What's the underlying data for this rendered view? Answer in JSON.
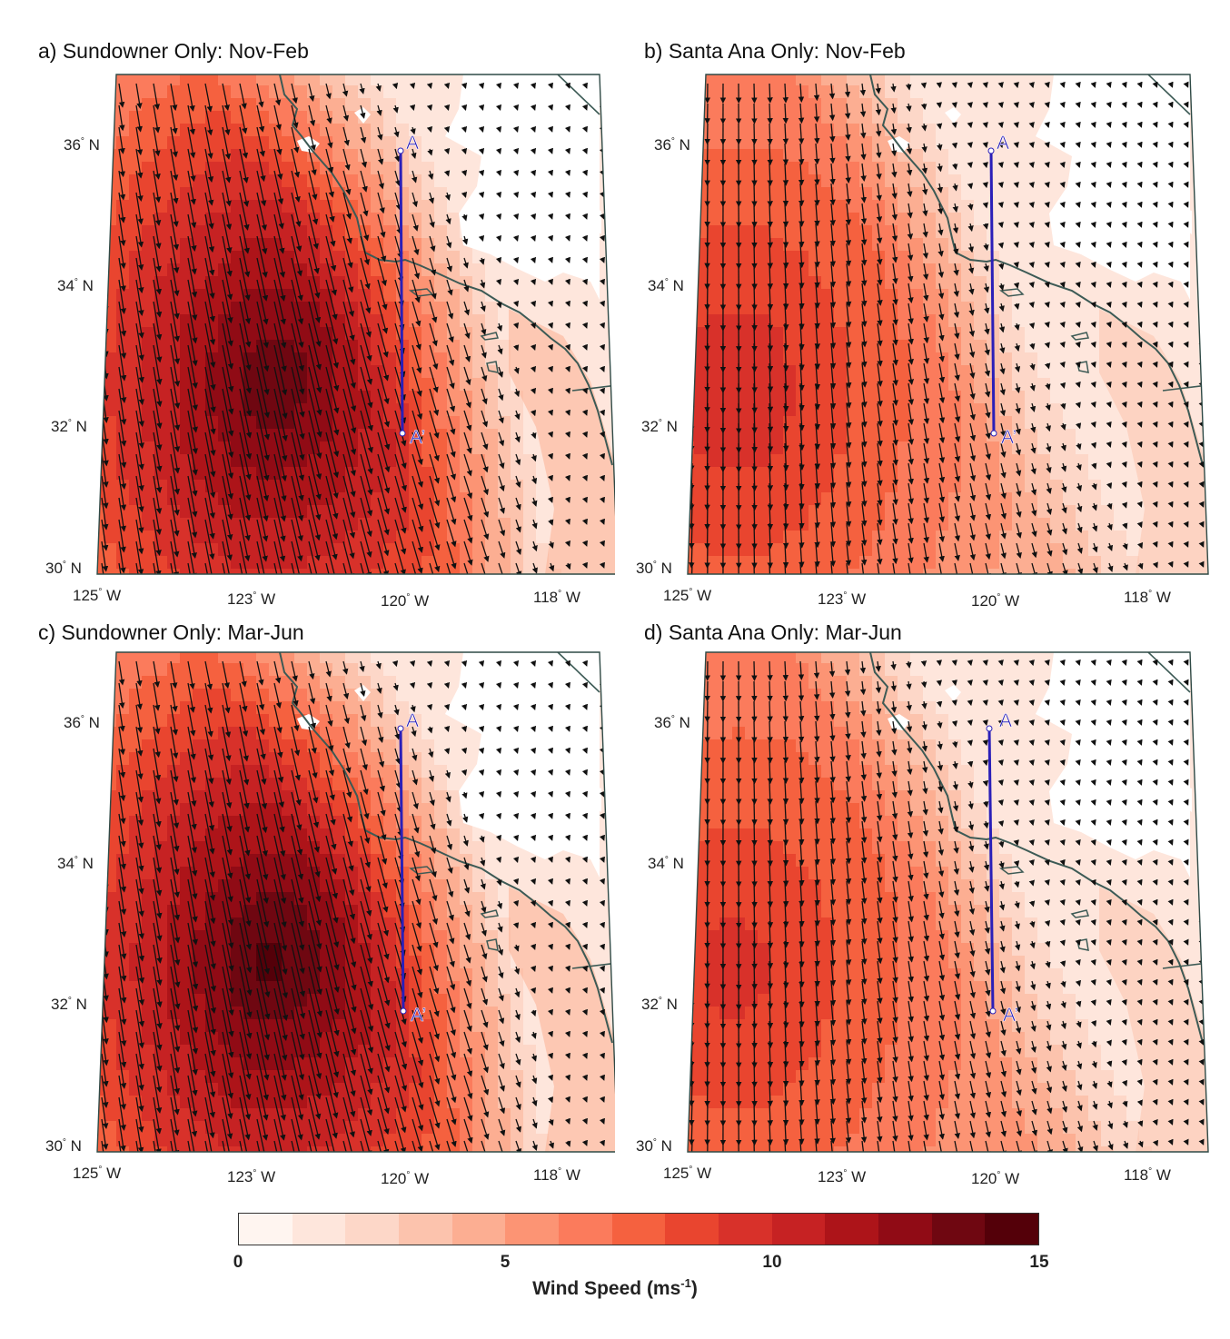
{
  "panels": [
    {
      "id": "a",
      "title": "a) Sundowner Only: Nov-Feb",
      "season": "Nov-Feb",
      "regime": "Sundowner"
    },
    {
      "id": "b",
      "title": "b) Santa Ana Only: Nov-Feb",
      "season": "Nov-Feb",
      "regime": "Santa Ana"
    },
    {
      "id": "c",
      "title": "c) Sundowner Only: Mar-Jun",
      "season": "Mar-Jun",
      "regime": "Sundowner"
    },
    {
      "id": "d",
      "title": "d) Santa Ana Only: Mar-Jun",
      "season": "Mar-Jun",
      "regime": "Santa Ana"
    }
  ],
  "lat_labels": [
    {
      "value": 36,
      "text": "36",
      "hemi": "N"
    },
    {
      "value": 34,
      "text": "34",
      "hemi": "N"
    },
    {
      "value": 32,
      "text": "32",
      "hemi": "N"
    },
    {
      "value": 30,
      "text": "30",
      "hemi": "N"
    }
  ],
  "lon_labels": [
    {
      "value": -125,
      "text": "125",
      "hemi": "W"
    },
    {
      "value": -123,
      "text": "123",
      "hemi": "W"
    },
    {
      "value": -120,
      "text": "120",
      "hemi": "W"
    },
    {
      "value": -118,
      "text": "118",
      "hemi": "W"
    }
  ],
  "transect": {
    "start_label": "A",
    "end_label": "A’",
    "start_lat": 36,
    "end_lat": 32,
    "lon": -120,
    "color": "#2a1fb8"
  },
  "colorbar": {
    "min": 0,
    "max": 15,
    "step": 1,
    "ticks": [
      {
        "value": 0,
        "text": "0"
      },
      {
        "value": 5,
        "text": "5"
      },
      {
        "value": 10,
        "text": "10"
      },
      {
        "value": 15,
        "text": "15"
      }
    ],
    "title": "Wind Speed (ms",
    "title_sup": "-1",
    "title_close": ")",
    "colors": [
      "#fff5f0",
      "#fee6dc",
      "#fdd7c8",
      "#fcc3ad",
      "#fcae92",
      "#fc9474",
      "#fb7b5c",
      "#f5613f",
      "#e9452f",
      "#d8312a",
      "#c62223",
      "#ad1419",
      "#900b15",
      "#6f0711",
      "#540009"
    ]
  },
  "chart_data": {
    "type": "map",
    "panels": [
      {
        "id": "a",
        "max_speed": 14,
        "coast_speed": 7,
        "direction": "NNW-to-SSE"
      },
      {
        "id": "b",
        "max_speed": 10,
        "coast_speed": 6,
        "direction": "N-to-S"
      },
      {
        "id": "c",
        "max_speed": 14.5,
        "coast_speed": 7,
        "direction": "NNW-to-SSE"
      },
      {
        "id": "d",
        "max_speed": 9.5,
        "coast_speed": 6,
        "direction": "N-to-S"
      }
    ]
  }
}
